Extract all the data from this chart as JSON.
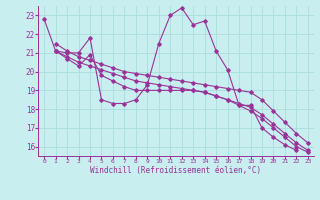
{
  "xlabel": "Windchill (Refroidissement éolien,°C)",
  "bg_color": "#c8eef0",
  "line_color": "#993399",
  "grid_color": "#aadddd",
  "xlim": [
    -0.5,
    23.5
  ],
  "ylim": [
    15.5,
    23.5
  ],
  "xticks": [
    0,
    1,
    2,
    3,
    4,
    5,
    6,
    7,
    8,
    9,
    10,
    11,
    12,
    13,
    14,
    15,
    16,
    17,
    18,
    19,
    20,
    21,
    22,
    23
  ],
  "yticks": [
    16,
    17,
    18,
    19,
    20,
    21,
    22,
    23
  ],
  "line1_x": [
    0,
    1,
    2,
    3,
    4,
    5,
    6,
    7,
    8,
    9,
    10,
    11,
    12,
    13,
    14,
    15,
    16,
    17,
    18,
    19,
    20,
    21,
    22
  ],
  "line1_y": [
    22.8,
    21.1,
    21.0,
    21.0,
    21.8,
    18.5,
    18.3,
    18.3,
    18.5,
    19.3,
    21.5,
    23.0,
    23.4,
    22.5,
    22.7,
    21.1,
    20.1,
    18.2,
    18.2,
    17.0,
    16.5,
    16.1,
    15.8
  ],
  "line2_x": [
    1,
    2,
    3,
    4,
    5,
    6,
    7,
    8,
    9,
    10,
    11,
    12,
    13,
    14,
    15,
    16,
    17,
    18,
    19,
    20,
    21,
    22,
    23
  ],
  "line2_y": [
    21.1,
    20.7,
    20.3,
    20.9,
    19.8,
    19.5,
    19.2,
    19.0,
    19.0,
    19.0,
    19.0,
    19.0,
    19.0,
    18.9,
    18.7,
    18.5,
    18.2,
    17.9,
    17.5,
    17.0,
    16.5,
    16.0,
    15.7
  ],
  "line3_x": [
    1,
    2,
    3,
    4,
    5,
    6,
    7,
    8,
    9,
    10,
    11,
    12,
    13,
    14,
    15,
    16,
    17,
    18,
    19,
    20,
    21,
    22,
    23
  ],
  "line3_y": [
    21.1,
    20.8,
    20.5,
    20.3,
    20.1,
    19.9,
    19.7,
    19.5,
    19.4,
    19.3,
    19.2,
    19.1,
    19.0,
    18.9,
    18.7,
    18.5,
    18.3,
    18.1,
    17.7,
    17.2,
    16.7,
    16.2,
    15.8
  ],
  "line4_x": [
    1,
    2,
    3,
    4,
    5,
    6,
    7,
    8,
    9,
    10,
    11,
    12,
    13,
    14,
    15,
    16,
    17,
    18,
    19,
    20,
    21,
    22,
    23
  ],
  "line4_y": [
    21.5,
    21.1,
    20.8,
    20.6,
    20.4,
    20.2,
    20.0,
    19.9,
    19.8,
    19.7,
    19.6,
    19.5,
    19.4,
    19.3,
    19.2,
    19.1,
    19.0,
    18.9,
    18.5,
    17.9,
    17.3,
    16.7,
    16.2
  ]
}
